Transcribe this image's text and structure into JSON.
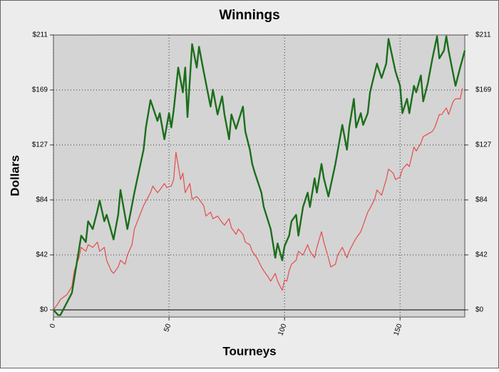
{
  "chart_data": {
    "type": "line",
    "title": "Winnings",
    "x_label": "Tourneys",
    "y_label": "Dollars",
    "xlim": [
      0,
      178
    ],
    "xticks": [
      0,
      50,
      100,
      150
    ],
    "ylim": [
      -5.5,
      211
    ],
    "yticks": [
      {
        "value": 0,
        "label": "$0"
      },
      {
        "value": 42.2,
        "label": "$42"
      },
      {
        "value": 84.4,
        "label": "$84"
      },
      {
        "value": 126.6,
        "label": "$127"
      },
      {
        "value": 168.8,
        "label": "$169"
      },
      {
        "value": 211,
        "label": "$211"
      }
    ],
    "y2lim": [
      -5.5,
      211
    ],
    "y2ticks": [
      {
        "value": 0,
        "label": "$0"
      },
      {
        "value": 42.2,
        "label": "$42"
      },
      {
        "value": 84.4,
        "label": "$84"
      },
      {
        "value": 126.6,
        "label": "$127"
      },
      {
        "value": 168.8,
        "label": "$169"
      },
      {
        "value": 211,
        "label": "$211"
      }
    ],
    "grid": true,
    "series": [
      {
        "color": "#e84a4a",
        "x": [
          0,
          2,
          3,
          6,
          8,
          9,
          11,
          12,
          14,
          15,
          17,
          19,
          20,
          22,
          23,
          25,
          26,
          28,
          29,
          31,
          32,
          34,
          35,
          39,
          42,
          43,
          45,
          46,
          48,
          49,
          51,
          52,
          53,
          55,
          56,
          57,
          59,
          60,
          62,
          63,
          65,
          66,
          68,
          69,
          71,
          73,
          74,
          76,
          77,
          79,
          80,
          82,
          83,
          85,
          86,
          88,
          90,
          91,
          93,
          94,
          96,
          97,
          99,
          100,
          101,
          102,
          103,
          105,
          106,
          108,
          110,
          111,
          113,
          114,
          116,
          117,
          119,
          120,
          122,
          123,
          125,
          127,
          128,
          130,
          131,
          133,
          134,
          136,
          137,
          139,
          140,
          142,
          144,
          145,
          147,
          148,
          150,
          151,
          153,
          154,
          156,
          157,
          159,
          160,
          162,
          164,
          165,
          167,
          168,
          170,
          171,
          173,
          174,
          176,
          177
        ],
        "values": [
          0,
          5,
          8,
          12,
          18,
          30,
          40,
          48,
          45,
          50,
          48,
          52,
          45,
          48,
          38,
          30,
          28,
          33,
          38,
          35,
          42,
          50,
          62,
          80,
          90,
          95,
          90,
          92,
          97,
          94,
          95,
          100,
          121,
          100,
          105,
          90,
          97,
          85,
          87,
          85,
          80,
          72,
          75,
          70,
          72,
          67,
          65,
          70,
          63,
          58,
          62,
          58,
          52,
          50,
          45,
          40,
          33,
          30,
          25,
          22,
          28,
          22,
          15,
          23,
          22,
          30,
          35,
          38,
          45,
          42,
          50,
          45,
          40,
          48,
          60,
          52,
          40,
          33,
          35,
          42,
          48,
          40,
          45,
          52,
          55,
          60,
          65,
          75,
          78,
          85,
          92,
          88,
          100,
          108,
          105,
          100,
          102,
          108,
          112,
          110,
          125,
          122,
          128,
          133,
          135,
          137,
          140,
          150,
          150,
          155,
          150,
          160,
          162,
          162,
          170
        ]
      },
      {
        "color": "#1b6e1b",
        "x": [
          0,
          2,
          3,
          8,
          11,
          12,
          14,
          15,
          17,
          19,
          20,
          22,
          23,
          26,
          28,
          29,
          32,
          35,
          39,
          40,
          42,
          45,
          46,
          48,
          50,
          51,
          52,
          54,
          56,
          57,
          58,
          60,
          62,
          63,
          65,
          68,
          69,
          71,
          73,
          74,
          76,
          77,
          79,
          82,
          83,
          85,
          86,
          87,
          90,
          91,
          94,
          96,
          97,
          99,
          100,
          102,
          103,
          105,
          106,
          108,
          110,
          111,
          113,
          114,
          116,
          117,
          119,
          122,
          125,
          127,
          128,
          130,
          131,
          133,
          134,
          136,
          137,
          140,
          142,
          144,
          145,
          148,
          150,
          151,
          153,
          154,
          156,
          157,
          159,
          160,
          162,
          164,
          166,
          167,
          169,
          170,
          171,
          174,
          176,
          178
        ],
        "values": [
          0,
          -4,
          -4,
          13,
          46,
          57,
          52,
          68,
          62,
          76,
          84,
          68,
          73,
          54,
          73,
          92,
          62,
          90,
          123,
          140,
          161,
          145,
          151,
          131,
          151,
          140,
          153,
          186,
          167,
          186,
          148,
          204,
          186,
          202,
          183,
          156,
          169,
          150,
          164,
          150,
          131,
          150,
          139,
          156,
          137,
          123,
          112,
          106,
          90,
          79,
          62,
          40,
          51,
          38,
          49,
          57,
          68,
          73,
          57,
          79,
          90,
          79,
          101,
          90,
          112,
          101,
          87,
          112,
          142,
          123,
          140,
          162,
          140,
          151,
          142,
          151,
          167,
          189,
          178,
          189,
          208,
          183,
          172,
          151,
          162,
          151,
          172,
          167,
          180,
          160,
          174,
          193,
          210,
          193,
          199,
          210,
          199,
          172,
          186,
          199
        ]
      }
    ]
  }
}
